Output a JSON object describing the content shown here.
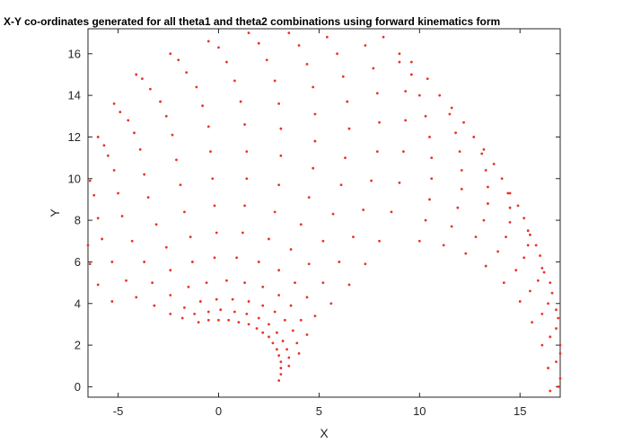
{
  "chart_data": {
    "type": "scatter",
    "title": "X-Y co-ordinates generated for all theta1 and theta2 combinations using forward kinematics form",
    "xlabel": "X",
    "ylabel": "Y",
    "xlim": [
      -6.5,
      17
    ],
    "ylim": [
      -0.5,
      17.2
    ],
    "xticks": [
      -5,
      0,
      5,
      10,
      15
    ],
    "yticks": [
      0,
      2,
      4,
      6,
      8,
      10,
      12,
      14,
      16
    ],
    "grid": false,
    "marker_color": "#e8332a",
    "series": [
      {
        "points": [
          [
            3.0,
            0.3
          ],
          [
            3.1,
            0.6
          ],
          [
            3.1,
            0.9
          ],
          [
            3.1,
            1.2
          ],
          [
            3.0,
            1.5
          ],
          [
            2.9,
            1.8
          ],
          [
            2.7,
            2.1
          ],
          [
            2.5,
            2.4
          ],
          [
            2.2,
            2.6
          ],
          [
            1.9,
            2.8
          ],
          [
            1.5,
            3.0
          ],
          [
            1.0,
            3.1
          ],
          [
            0.5,
            3.2
          ],
          [
            0.0,
            3.2
          ],
          [
            -0.5,
            3.2
          ],
          [
            -1.0,
            3.1
          ],
          [
            3.5,
            1.0
          ],
          [
            3.5,
            1.4
          ],
          [
            3.4,
            1.8
          ],
          [
            3.2,
            2.2
          ],
          [
            2.9,
            2.6
          ],
          [
            2.5,
            3.0
          ],
          [
            2.0,
            3.3
          ],
          [
            1.4,
            3.5
          ],
          [
            0.8,
            3.6
          ],
          [
            0.1,
            3.7
          ],
          [
            -0.5,
            3.6
          ],
          [
            -1.2,
            3.5
          ],
          [
            -1.8,
            3.3
          ],
          [
            4.0,
            1.6
          ],
          [
            3.9,
            2.1
          ],
          [
            3.7,
            2.7
          ],
          [
            3.3,
            3.2
          ],
          [
            2.8,
            3.6
          ],
          [
            2.2,
            3.9
          ],
          [
            1.5,
            4.1
          ],
          [
            0.7,
            4.2
          ],
          [
            -0.1,
            4.2
          ],
          [
            -0.9,
            4.1
          ],
          [
            -1.7,
            3.8
          ],
          [
            -2.4,
            3.5
          ],
          [
            4.4,
            2.5
          ],
          [
            4.1,
            3.2
          ],
          [
            3.6,
            3.9
          ],
          [
            3.0,
            4.4
          ],
          [
            2.2,
            4.8
          ],
          [
            1.3,
            5.0
          ],
          [
            0.4,
            5.1
          ],
          [
            -0.6,
            5.0
          ],
          [
            -1.5,
            4.8
          ],
          [
            -2.4,
            4.4
          ],
          [
            -3.2,
            3.9
          ],
          [
            4.8,
            3.4
          ],
          [
            4.4,
            4.3
          ],
          [
            3.8,
            5.0
          ],
          [
            3.0,
            5.6
          ],
          [
            2.0,
            6.0
          ],
          [
            0.9,
            6.2
          ],
          [
            -0.2,
            6.2
          ],
          [
            -1.3,
            6.0
          ],
          [
            -2.4,
            5.6
          ],
          [
            -3.3,
            5.0
          ],
          [
            -4.1,
            4.3
          ],
          [
            5.6,
            4.0
          ],
          [
            5.2,
            5.0
          ],
          [
            4.5,
            5.9
          ],
          [
            3.6,
            6.6
          ],
          [
            2.5,
            7.1
          ],
          [
            1.2,
            7.4
          ],
          [
            -0.1,
            7.4
          ],
          [
            -1.4,
            7.2
          ],
          [
            -2.6,
            6.7
          ],
          [
            -3.7,
            6.0
          ],
          [
            -4.6,
            5.1
          ],
          [
            -5.3,
            4.1
          ],
          [
            6.5,
            4.9
          ],
          [
            6.0,
            6.0
          ],
          [
            5.2,
            7.0
          ],
          [
            4.1,
            7.8
          ],
          [
            2.8,
            8.4
          ],
          [
            1.3,
            8.7
          ],
          [
            -0.2,
            8.7
          ],
          [
            -1.7,
            8.4
          ],
          [
            -3.1,
            7.8
          ],
          [
            -4.3,
            7.0
          ],
          [
            -5.3,
            6.0
          ],
          [
            -6.0,
            4.9
          ],
          [
            7.3,
            5.9
          ],
          [
            6.7,
            7.2
          ],
          [
            5.7,
            8.3
          ],
          [
            4.5,
            9.1
          ],
          [
            3.0,
            9.7
          ],
          [
            1.4,
            10.0
          ],
          [
            -0.3,
            10.0
          ],
          [
            -1.9,
            9.7
          ],
          [
            -3.5,
            9.1
          ],
          [
            -4.8,
            8.2
          ],
          [
            -5.8,
            7.1
          ],
          [
            -6.4,
            5.9
          ],
          [
            8.0,
            7.0
          ],
          [
            7.2,
            8.5
          ],
          [
            6.1,
            9.7
          ],
          [
            4.7,
            10.5
          ],
          [
            3.1,
            11.1
          ],
          [
            1.4,
            11.3
          ],
          [
            -0.4,
            11.3
          ],
          [
            -2.1,
            10.9
          ],
          [
            -3.7,
            10.2
          ],
          [
            -5.0,
            9.3
          ],
          [
            -6.0,
            8.1
          ],
          [
            -6.5,
            6.8
          ],
          [
            8.6,
            8.4
          ],
          [
            7.6,
            9.9
          ],
          [
            6.3,
            11.0
          ],
          [
            4.8,
            11.8
          ],
          [
            3.1,
            12.4
          ],
          [
            1.3,
            12.6
          ],
          [
            -0.5,
            12.5
          ],
          [
            -2.3,
            12.1
          ],
          [
            -3.9,
            11.4
          ],
          [
            -5.2,
            10.4
          ],
          [
            -6.2,
            9.2
          ],
          [
            9.0,
            9.8
          ],
          [
            7.9,
            11.3
          ],
          [
            6.5,
            12.4
          ],
          [
            4.8,
            13.1
          ],
          [
            3.0,
            13.6
          ],
          [
            1.1,
            13.7
          ],
          [
            -0.8,
            13.5
          ],
          [
            -2.6,
            13.0
          ],
          [
            -4.2,
            12.2
          ],
          [
            -5.5,
            11.1
          ],
          [
            -6.4,
            9.9
          ],
          [
            9.2,
            11.3
          ],
          [
            8.0,
            12.7
          ],
          [
            6.4,
            13.7
          ],
          [
            4.7,
            14.4
          ],
          [
            2.8,
            14.7
          ],
          [
            0.8,
            14.7
          ],
          [
            -1.1,
            14.4
          ],
          [
            -2.9,
            13.7
          ],
          [
            -4.5,
            12.8
          ],
          [
            -5.7,
            11.6
          ],
          [
            9.3,
            12.8
          ],
          [
            7.9,
            14.1
          ],
          [
            6.2,
            14.9
          ],
          [
            4.4,
            15.5
          ],
          [
            2.4,
            15.7
          ],
          [
            0.4,
            15.6
          ],
          [
            -1.6,
            15.1
          ],
          [
            -3.4,
            14.3
          ],
          [
            -4.9,
            13.2
          ],
          [
            -6.0,
            12.0
          ],
          [
            9.3,
            14.2
          ],
          [
            7.7,
            15.3
          ],
          [
            5.9,
            16.0
          ],
          [
            4.0,
            16.4
          ],
          [
            2.0,
            16.5
          ],
          [
            0.0,
            16.3
          ],
          [
            -2.0,
            15.7
          ],
          [
            -3.8,
            14.8
          ],
          [
            -5.2,
            13.6
          ],
          [
            9.0,
            15.6
          ],
          [
            7.3,
            16.4
          ],
          [
            5.4,
            16.8
          ],
          [
            3.5,
            17.0
          ],
          [
            1.5,
            17.0
          ],
          [
            -0.5,
            16.6
          ],
          [
            -2.4,
            16.0
          ],
          [
            -4.1,
            15.0
          ],
          [
            10.0,
            7.0
          ],
          [
            11.2,
            6.8
          ],
          [
            12.3,
            6.4
          ],
          [
            13.3,
            5.8
          ],
          [
            14.2,
            5.0
          ],
          [
            15.0,
            4.1
          ],
          [
            15.6,
            3.1
          ],
          [
            16.1,
            2.0
          ],
          [
            16.4,
            0.9
          ],
          [
            16.5,
            -0.2
          ],
          [
            10.3,
            8.0
          ],
          [
            11.6,
            7.7
          ],
          [
            12.8,
            7.2
          ],
          [
            13.9,
            6.5
          ],
          [
            14.8,
            5.6
          ],
          [
            15.5,
            4.6
          ],
          [
            16.1,
            3.5
          ],
          [
            16.5,
            2.4
          ],
          [
            16.8,
            1.2
          ],
          [
            16.9,
            0.0
          ],
          [
            10.5,
            9.0
          ],
          [
            11.9,
            8.6
          ],
          [
            13.2,
            8.0
          ],
          [
            14.3,
            7.2
          ],
          [
            15.2,
            6.2
          ],
          [
            15.9,
            5.1
          ],
          [
            16.4,
            4.0
          ],
          [
            16.8,
            2.8
          ],
          [
            17.0,
            1.6
          ],
          [
            17.0,
            0.4
          ],
          [
            10.6,
            10.0
          ],
          [
            12.1,
            9.5
          ],
          [
            13.4,
            8.8
          ],
          [
            14.5,
            7.9
          ],
          [
            15.4,
            6.8
          ],
          [
            16.1,
            5.7
          ],
          [
            16.6,
            4.5
          ],
          [
            16.9,
            3.3
          ],
          [
            17.0,
            2.0
          ],
          [
            10.6,
            11.0
          ],
          [
            12.1,
            10.4
          ],
          [
            13.4,
            9.6
          ],
          [
            14.5,
            8.6
          ],
          [
            15.4,
            7.5
          ],
          [
            16.0,
            6.3
          ],
          [
            16.5,
            5.0
          ],
          [
            16.8,
            3.7
          ],
          [
            10.5,
            12.0
          ],
          [
            12.0,
            11.3
          ],
          [
            13.3,
            10.4
          ],
          [
            14.4,
            9.3
          ],
          [
            15.2,
            8.1
          ],
          [
            15.8,
            6.8
          ],
          [
            16.2,
            5.5
          ],
          [
            10.3,
            13.0
          ],
          [
            11.8,
            12.2
          ],
          [
            13.1,
            11.2
          ],
          [
            14.1,
            10.0
          ],
          [
            14.9,
            8.7
          ],
          [
            15.5,
            7.3
          ],
          [
            10.0,
            14.0
          ],
          [
            11.5,
            13.1
          ],
          [
            12.7,
            12.0
          ],
          [
            13.7,
            10.7
          ],
          [
            14.5,
            9.3
          ],
          [
            9.6,
            15.0
          ],
          [
            11.0,
            14.0
          ],
          [
            12.2,
            12.7
          ],
          [
            13.2,
            11.4
          ],
          [
            9.0,
            16.0
          ],
          [
            10.4,
            14.8
          ],
          [
            11.6,
            13.4
          ],
          [
            8.2,
            16.8
          ],
          [
            9.6,
            15.6
          ]
        ]
      }
    ]
  }
}
